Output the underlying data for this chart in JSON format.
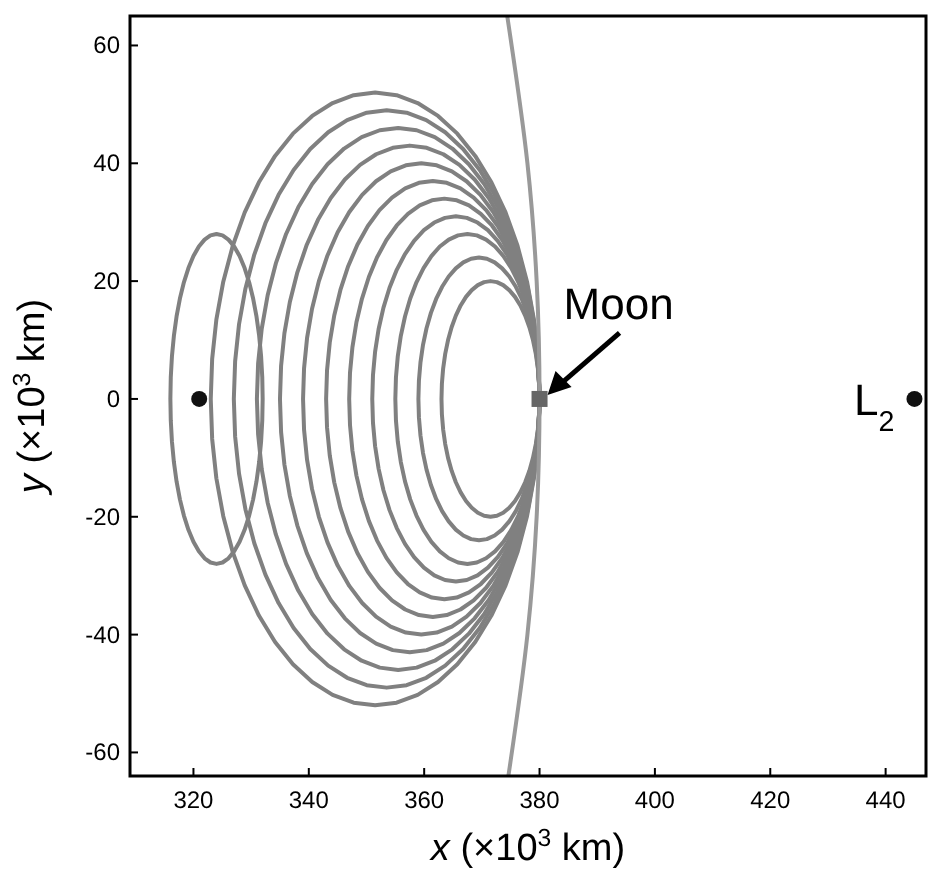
{
  "chart_data": {
    "type": "line",
    "xlabel": "x (×10$^{3}$ km)",
    "ylabel": "y (×10$^{3}$ km)",
    "xlim": [
      309,
      447
    ],
    "ylim": [
      -64,
      65
    ],
    "xticks": [
      320,
      340,
      360,
      380,
      400,
      420,
      440
    ],
    "yticks": [
      -60,
      -40,
      -20,
      0,
      20,
      40,
      60
    ],
    "grid": false,
    "marker": "none",
    "line_style": "solid",
    "series": [
      {
        "color": "#999999",
        "x": [
          374.4,
          377.9,
          379.5,
          380,
          379.5,
          377.9,
          374.6
        ],
        "values": [
          65,
          40,
          20,
          0,
          -20,
          -40,
          -64
        ]
      },
      {
        "type": "scatter",
        "marker": "circle",
        "color": "#111111",
        "x": [
          321,
          445
        ],
        "values": [
          0,
          0
        ]
      },
      {
        "type": "scatter",
        "marker": "square",
        "color": "#666666",
        "x": [
          380
        ],
        "values": [
          0
        ]
      }
    ],
    "annotations": [
      {
        "text": "Moon",
        "x": 380,
        "y": 0
      },
      {
        "text": "L$_{2}$",
        "x": 445,
        "y": 0
      }
    ]
  }
}
